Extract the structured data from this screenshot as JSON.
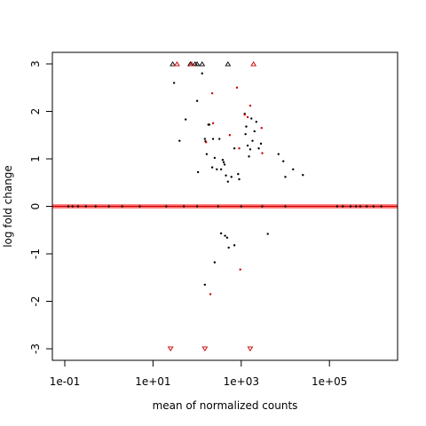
{
  "chart_data": {
    "type": "scatter",
    "title": "",
    "xlabel": "mean of normalized counts",
    "ylabel": "log fold change",
    "x_scale": "log10",
    "xlim": [
      0.06,
      5000000
    ],
    "ylim": [
      -3.3,
      3.3
    ],
    "x_ticks": [
      0.1,
      10,
      1000,
      100000
    ],
    "x_tick_labels": [
      "1e-01",
      "1e+01",
      "1e+03",
      "1e+05"
    ],
    "y_ticks": [
      -3,
      -2,
      -1,
      0,
      1,
      2,
      3
    ],
    "y_tick_labels": [
      "-3",
      "-2",
      "-1",
      "0",
      "1",
      "2",
      "3"
    ],
    "grid": false,
    "legend": "none",
    "colors": {
      "zero_line": "#ff8080",
      "significant": "#cc0000",
      "not_significant": "#000000"
    },
    "reference_line": {
      "y": 0,
      "color": "#ff8080"
    },
    "series": [
      {
        "points": [
          {
            "x": 0.12,
            "y": 0
          },
          {
            "x": 0.15,
            "y": 0
          },
          {
            "x": 0.2,
            "y": 0
          },
          {
            "x": 0.3,
            "y": 0
          },
          {
            "x": 0.5,
            "y": 0
          },
          {
            "x": 1,
            "y": 0
          },
          {
            "x": 2,
            "y": 0
          },
          {
            "x": 5,
            "y": 0
          },
          {
            "x": 20,
            "y": 0
          },
          {
            "x": 50,
            "y": 0
          },
          {
            "x": 100,
            "y": 0
          },
          {
            "x": 300,
            "y": 0
          },
          {
            "x": 1000,
            "y": 0
          },
          {
            "x": 3000,
            "y": 0
          },
          {
            "x": 10000,
            "y": 0
          },
          {
            "x": 150000,
            "y": 0
          },
          {
            "x": 200000,
            "y": 0
          },
          {
            "x": 300000,
            "y": 0
          },
          {
            "x": 400000,
            "y": 0
          },
          {
            "x": 500000,
            "y": 0
          },
          {
            "x": 700000,
            "y": 0
          },
          {
            "x": 1000000,
            "y": 0
          },
          {
            "x": 1500000,
            "y": 0
          },
          {
            "x": 30,
            "y": 2.6
          },
          {
            "x": 40,
            "y": 1.38
          },
          {
            "x": 55,
            "y": 1.83
          },
          {
            "x": 100,
            "y": 2.22
          },
          {
            "x": 105,
            "y": 0.72
          },
          {
            "x": 130,
            "y": 2.8
          },
          {
            "x": 150,
            "y": 1.42
          },
          {
            "x": 155,
            "y": 1.37
          },
          {
            "x": 165,
            "y": 1.1
          },
          {
            "x": 180,
            "y": 1.72
          },
          {
            "x": 190,
            "y": 1.72
          },
          {
            "x": 220,
            "y": 0.82
          },
          {
            "x": 230,
            "y": 1.42
          },
          {
            "x": 250,
            "y": 1.02
          },
          {
            "x": 280,
            "y": 0.78
          },
          {
            "x": 320,
            "y": 1.42
          },
          {
            "x": 350,
            "y": 0.78
          },
          {
            "x": 380,
            "y": 0.98
          },
          {
            "x": 400,
            "y": 0.93
          },
          {
            "x": 420,
            "y": 0.88
          },
          {
            "x": 450,
            "y": 0.65
          },
          {
            "x": 500,
            "y": 0.52
          },
          {
            "x": 600,
            "y": 0.62
          },
          {
            "x": 700,
            "y": 1.22
          },
          {
            "x": 850,
            "y": 0.68
          },
          {
            "x": 900,
            "y": 0.57
          },
          {
            "x": 1200,
            "y": 1.95
          },
          {
            "x": 1250,
            "y": 1.52
          },
          {
            "x": 1300,
            "y": 1.68
          },
          {
            "x": 1400,
            "y": 1.28
          },
          {
            "x": 1500,
            "y": 1.05
          },
          {
            "x": 1600,
            "y": 1.2
          },
          {
            "x": 1700,
            "y": 1.85
          },
          {
            "x": 1800,
            "y": 1.38
          },
          {
            "x": 2000,
            "y": 1.58
          },
          {
            "x": 2200,
            "y": 1.78
          },
          {
            "x": 2500,
            "y": 1.22
          },
          {
            "x": 2800,
            "y": 1.32
          },
          {
            "x": 7000,
            "y": 1.1
          },
          {
            "x": 9000,
            "y": 0.95
          },
          {
            "x": 10000,
            "y": 0.62
          },
          {
            "x": 15000,
            "y": 0.78
          },
          {
            "x": 25000,
            "y": 0.66
          },
          {
            "x": 350,
            "y": -0.57
          },
          {
            "x": 430,
            "y": -0.62
          },
          {
            "x": 480,
            "y": -0.66
          },
          {
            "x": 520,
            "y": -0.87
          },
          {
            "x": 700,
            "y": -0.82
          },
          {
            "x": 4000,
            "y": -0.58
          },
          {
            "x": 250,
            "y": -1.18
          },
          {
            "x": 150,
            "y": -1.65
          }
        ]
      },
      {
        "points": [
          {
            "x": 160,
            "y": 1.35
          },
          {
            "x": 220,
            "y": 2.38
          },
          {
            "x": 230,
            "y": 1.75
          },
          {
            "x": 550,
            "y": 1.5
          },
          {
            "x": 800,
            "y": 2.5
          },
          {
            "x": 900,
            "y": 1.22
          },
          {
            "x": 1200,
            "y": 1.93
          },
          {
            "x": 1400,
            "y": 1.88
          },
          {
            "x": 1600,
            "y": 2.12
          },
          {
            "x": 2900,
            "y": 1.65
          },
          {
            "x": 3000,
            "y": 1.12
          },
          {
            "x": 950,
            "y": -1.33
          },
          {
            "x": 200,
            "y": -1.85
          }
        ]
      },
      {
        "capped_points": [
          {
            "x": 28,
            "y": 3
          },
          {
            "x": 70,
            "y": 3
          },
          {
            "x": 90,
            "y": 3
          },
          {
            "x": 100,
            "y": 3
          },
          {
            "x": 130,
            "y": 3
          },
          {
            "x": 500,
            "y": 3
          }
        ]
      },
      {
        "capped_points": [
          {
            "x": 35,
            "y": 3
          },
          {
            "x": 75,
            "y": 3
          },
          {
            "x": 1900,
            "y": 3
          },
          {
            "x": 25,
            "y": -3
          },
          {
            "x": 150,
            "y": -3
          },
          {
            "x": 1600,
            "y": -3
          }
        ]
      }
    ]
  }
}
